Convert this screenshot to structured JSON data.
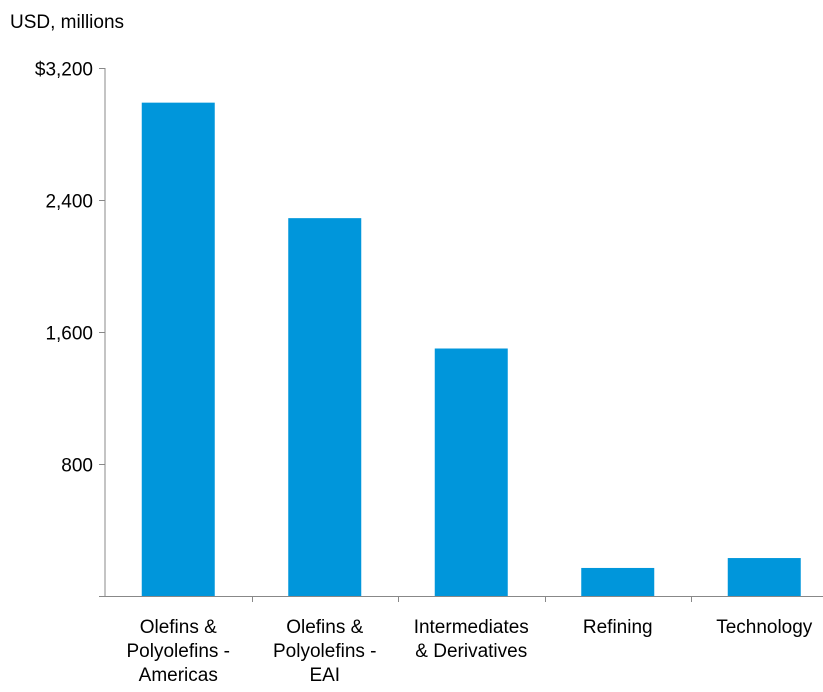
{
  "chart_data": {
    "type": "bar",
    "title": "",
    "ylabel": "USD, millions",
    "xlabel": "",
    "categories": [
      [
        "Olefins &",
        "Polyolefins -",
        "Americas"
      ],
      [
        "Olefins &",
        "Polyolefins -",
        "EAI"
      ],
      [
        "Intermediates",
        "& Derivatives"
      ],
      [
        "Refining"
      ],
      [
        "Technology"
      ]
    ],
    "values": [
      2990,
      2290,
      1500,
      170,
      230
    ],
    "ylim": [
      0,
      3200
    ],
    "yticks": [
      {
        "value": 3200,
        "label": "$3,200"
      },
      {
        "value": 2400,
        "label": "2,400"
      },
      {
        "value": 1600,
        "label": "1,600"
      },
      {
        "value": 800,
        "label": "800"
      }
    ],
    "bar_color": "#0096db",
    "grid": false
  }
}
